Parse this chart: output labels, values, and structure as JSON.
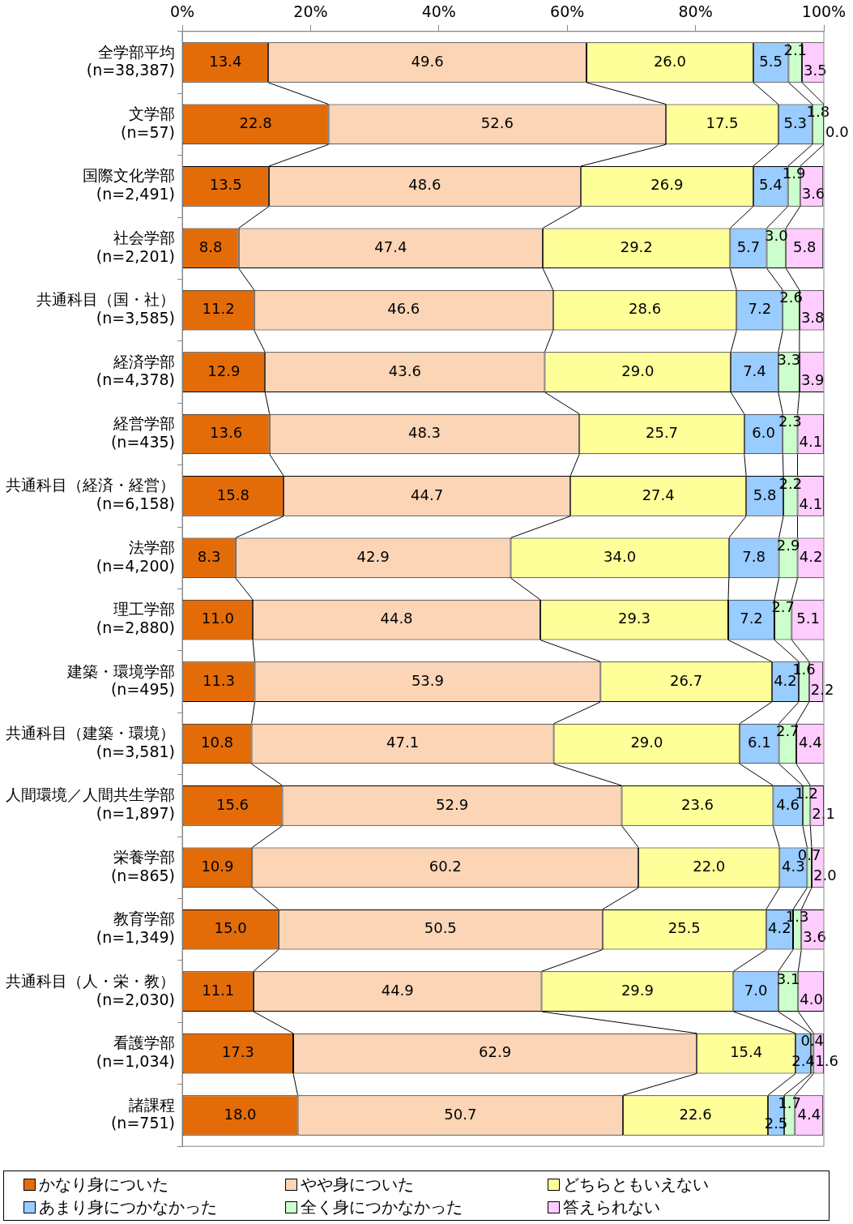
{
  "chart_data": {
    "type": "bar",
    "orientation": "horizontal",
    "stacked": true,
    "grid": false,
    "legend": "bottom",
    "categories": [
      "全学部平均\n(n=38,387)",
      "文学部\n(n=57)",
      "国際文化学部\n(n=2,491)",
      "社会学部\n(n=2,201)",
      "共通科目（国・社）\n(n=3,585)",
      "経済学部\n(n=4,378)",
      "経営学部\n(n=435)",
      "共通科目（経済・経営）\n(n=6,158)",
      "法学部\n(n=4,200)",
      "理工学部\n(n=2,880)",
      "建築・環境学部\n(n=495)",
      "共通科目（建築・環境）\n(n=3,581)",
      "人間環境／人間共生学部\n(n=1,897)",
      "栄養学部\n(n=865)",
      "教育学部\n(n=1,349)",
      "共通科目（人・栄・教）\n(n=2,030)",
      "看護学部\n(n=1,034)",
      "諸課程\n(n=751)"
    ],
    "xlim": [
      0,
      100
    ],
    "xticks": [
      {
        "value": 0,
        "label": "0%"
      },
      {
        "value": 20,
        "label": "20%"
      },
      {
        "value": 40,
        "label": "40%"
      },
      {
        "value": 60,
        "label": "60%"
      },
      {
        "value": 80,
        "label": "80%"
      },
      {
        "value": 100,
        "label": "100%"
      }
    ],
    "series": [
      {
        "name": "かなり身についた",
        "color": "#e36c09",
        "values": [
          13.4,
          22.8,
          13.5,
          8.8,
          11.2,
          12.9,
          13.6,
          15.8,
          8.3,
          11.0,
          11.3,
          10.8,
          15.6,
          10.9,
          15.0,
          11.1,
          17.3,
          18.0
        ],
        "value_labels": [
          "13.4",
          "22.8",
          "13.5",
          "8.8",
          "11.2",
          "12.9",
          "13.6",
          "15.8",
          "8.3",
          "11.0",
          "11.3",
          "10.8",
          "15.6",
          "10.9",
          "15.0",
          "11.1",
          "17.3",
          "18.0"
        ]
      },
      {
        "name": "やや身についた",
        "color": "#fbd5b5",
        "values": [
          49.6,
          52.6,
          48.6,
          47.4,
          46.6,
          43.6,
          48.3,
          44.7,
          42.9,
          44.8,
          53.9,
          47.1,
          52.9,
          60.2,
          50.5,
          44.9,
          62.9,
          50.7
        ],
        "value_labels": [
          "49.6",
          "52.6",
          "48.6",
          "47.4",
          "46.6",
          "43.6",
          "48.3",
          "44.7",
          "42.9",
          "44.8",
          "53.9",
          "47.1",
          "52.9",
          "60.2",
          "50.5",
          "44.9",
          "62.9",
          "50.7"
        ]
      },
      {
        "name": "どちらともいえない",
        "color": "#ffff99",
        "values": [
          26.0,
          17.5,
          26.9,
          29.2,
          28.6,
          29.0,
          25.7,
          27.4,
          34.0,
          29.3,
          26.7,
          29.0,
          23.6,
          22.0,
          25.5,
          29.9,
          15.4,
          22.6
        ],
        "value_labels": [
          "26.0",
          "17.5",
          "26.9",
          "29.2",
          "28.6",
          "29.0",
          "25.7",
          "27.4",
          "34.0",
          "29.3",
          "26.7",
          "29.0",
          "23.6",
          "22.0",
          "25.5",
          "29.9",
          "15.4",
          "22.6"
        ]
      },
      {
        "name": "あまり身につかなかった",
        "color": "#99ccff",
        "values": [
          5.5,
          5.3,
          5.4,
          5.7,
          7.2,
          7.4,
          6.0,
          5.8,
          7.8,
          7.2,
          4.2,
          6.1,
          4.6,
          4.3,
          4.2,
          7.0,
          2.4,
          2.5
        ],
        "value_labels": [
          "5.5",
          "5.3",
          "5.4",
          "5.7",
          "7.2",
          "7.4",
          "6.0",
          "5.8",
          "7.8",
          "7.2",
          "4.2",
          "6.1",
          "4.6",
          "4.3",
          "4.2",
          "7.0",
          "2.4",
          "2.5"
        ]
      },
      {
        "name": "全く身につかなかった",
        "color": "#ccffcc",
        "values": [
          2.1,
          1.8,
          1.9,
          3.0,
          2.6,
          3.3,
          2.3,
          2.2,
          2.9,
          2.7,
          1.6,
          2.7,
          1.2,
          0.7,
          1.3,
          3.1,
          0.4,
          1.7
        ],
        "value_labels": [
          "2.1",
          "1.8",
          "1.9",
          "3.0",
          "2.6",
          "3.3",
          "2.3",
          "2.2",
          "2.9",
          "2.7",
          "1.6",
          "2.7",
          "1.2",
          "0.7",
          "1.3",
          "3.1",
          "0.4",
          "1.7"
        ]
      },
      {
        "name": "答えられない",
        "color": "#ffccff",
        "values": [
          3.5,
          0.0,
          3.6,
          5.8,
          3.8,
          3.9,
          4.1,
          4.1,
          4.2,
          5.1,
          2.2,
          4.4,
          2.1,
          2.0,
          3.6,
          4.0,
          1.6,
          4.4
        ],
        "value_labels": [
          "3.5",
          "0.0",
          "3.6",
          "5.8",
          "3.8",
          "3.9",
          "4.1",
          "4.1",
          "4.2",
          "5.1",
          "2.2",
          "4.4",
          "2.1",
          "2.0",
          "3.6",
          "4.0",
          "1.6",
          "4.4"
        ]
      }
    ]
  }
}
